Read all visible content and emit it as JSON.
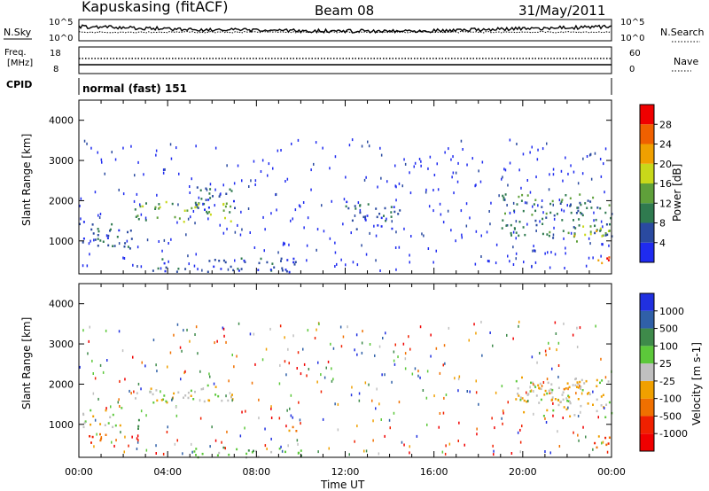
{
  "header": {
    "station": "Kapuskasing (fitACF)",
    "beam": "Beam 08",
    "date": "31/May/2011"
  },
  "top_panels": {
    "nsky_label": "N.Sky",
    "nsky_ticks": [
      "10^5",
      "10^0"
    ],
    "nsearch_label": "N.Search",
    "nsearch_ticks": [
      "10^5",
      "10^0"
    ],
    "freq_label": "Freq.",
    "freq_unit": "[MHz]",
    "freq_ticks": [
      "18",
      "8"
    ],
    "nave_label": "Nave",
    "nave_ticks": [
      "60",
      "0"
    ],
    "cpid_label": "CPID",
    "cpid_value": "normal (fast) 151"
  },
  "colors": {
    "power_scale": [
      "#1f2bf0",
      "#2a4aa0",
      "#2f7a4f",
      "#5fa03a",
      "#c8d81a",
      "#f0a000",
      "#f06000",
      "#f00000"
    ],
    "velocity_scale": [
      "#2030e0",
      "#3060a8",
      "#3e8a4a",
      "#5cc83a",
      "#c0c0c0",
      "#f0a000",
      "#f07000",
      "#f02000",
      "#f00000"
    ]
  },
  "chart_data": [
    {
      "type": "heatmap",
      "panel": "power",
      "ylabel": "Slant Range [km]",
      "xlabel": "",
      "ylim": [
        180,
        4500
      ],
      "xlim": [
        "00:00",
        "24:00"
      ],
      "yticks": [
        "1000",
        "2000",
        "3000",
        "4000"
      ],
      "xticks": [
        "00:00",
        "04:00",
        "08:00",
        "12:00",
        "16:00",
        "20:00",
        "00:00"
      ],
      "colorbar_label": "Power [dB]",
      "colorbar_ticks": [
        "4",
        "8",
        "12",
        "16",
        "20",
        "24",
        "28"
      ],
      "regions": [
        {
          "t": [
            0.0,
            2.5
          ],
          "r": [
            800,
            1500
          ],
          "level": 1
        },
        {
          "t": [
            2.5,
            7.0
          ],
          "r": [
            1500,
            2000
          ],
          "level": 3
        },
        {
          "t": [
            5.0,
            7.0
          ],
          "r": [
            1800,
            2400
          ],
          "level": 1
        },
        {
          "t": [
            3.0,
            10.0
          ],
          "r": [
            250,
            600
          ],
          "level": 1
        },
        {
          "t": [
            12.0,
            14.5
          ],
          "r": [
            1300,
            2000
          ],
          "level": 1
        },
        {
          "t": [
            19.0,
            24.0
          ],
          "r": [
            1100,
            2200
          ],
          "level": 2
        },
        {
          "t": [
            22.0,
            24.0
          ],
          "r": [
            1000,
            1400
          ],
          "level": 4
        },
        {
          "t": [
            23.0,
            24.0
          ],
          "r": [
            450,
            700
          ],
          "level": 6
        }
      ]
    },
    {
      "type": "heatmap",
      "panel": "velocity",
      "ylabel": "Slant Range [km]",
      "xlabel": "Time UT",
      "ylim": [
        180,
        4500
      ],
      "xlim": [
        "00:00",
        "24:00"
      ],
      "yticks": [
        "1000",
        "2000",
        "3000",
        "4000"
      ],
      "xticks": [
        "00:00",
        "04:00",
        "08:00",
        "12:00",
        "16:00",
        "20:00",
        "00:00"
      ],
      "colorbar_label": "Velocity [m s-1]",
      "colorbar_ticks": [
        "1000",
        "500",
        "100",
        "25",
        "-25",
        "-100",
        "-500",
        "-1000"
      ],
      "regions": [
        {
          "t": [
            0.0,
            2.0
          ],
          "r": [
            950,
            1450
          ],
          "level": 4
        },
        {
          "t": [
            0.4,
            1.3
          ],
          "r": [
            400,
            800
          ],
          "level": 6
        },
        {
          "t": [
            2.5,
            7.0
          ],
          "r": [
            1550,
            2000
          ],
          "level": 4
        },
        {
          "t": [
            2.6,
            3.0
          ],
          "r": [
            900,
            1300
          ],
          "level": 2
        },
        {
          "t": [
            5.0,
            10.0
          ],
          "r": [
            200,
            450
          ],
          "level": 3
        },
        {
          "t": [
            9.3,
            9.8
          ],
          "r": [
            800,
            1100
          ],
          "level": 6
        },
        {
          "t": [
            19.5,
            24.0
          ],
          "r": [
            1200,
            2200
          ],
          "level": 4
        },
        {
          "t": [
            20.5,
            23.0
          ],
          "r": [
            1600,
            2100
          ],
          "level": 5
        },
        {
          "t": [
            22.8,
            24.0
          ],
          "r": [
            450,
            750
          ],
          "level": 6
        }
      ]
    }
  ]
}
